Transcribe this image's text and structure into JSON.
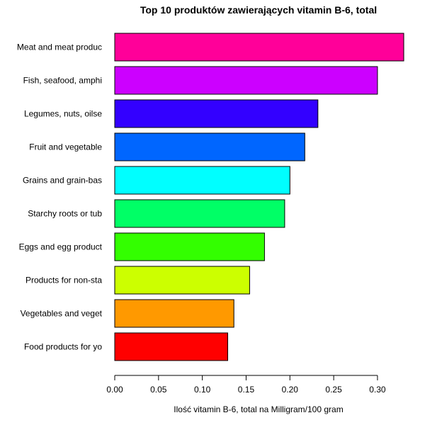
{
  "chart_data": {
    "type": "bar",
    "orientation": "horizontal",
    "title": "Top 10 produktów zawierających vitamin B-6, total",
    "xlabel": "Ilość vitamin B-6, total na Milligram/100 gram",
    "ylabel": "",
    "xlim": [
      0,
      0.33
    ],
    "xticks": [
      "0.00",
      "0.05",
      "0.10",
      "0.15",
      "0.20",
      "0.25",
      "0.30"
    ],
    "grid": false,
    "categories": [
      "Meat and meat produc",
      "Fish, seafood, amphi",
      "Legumes, nuts, oilse",
      "Fruit and vegetable ",
      "Grains and grain-bas",
      "Starchy roots or tub",
      "Eggs and egg product",
      "Products for non-sta",
      "Vegetables and veget",
      "Food products for yo"
    ],
    "values": [
      0.33,
      0.3,
      0.232,
      0.217,
      0.2,
      0.194,
      0.171,
      0.154,
      0.136,
      0.129
    ],
    "colors": [
      "#FF0099",
      "#CC00FF",
      "#3300FF",
      "#0066FF",
      "#00FFFF",
      "#00FF66",
      "#33FF00",
      "#CCFF00",
      "#FF9900",
      "#FF0000"
    ]
  }
}
